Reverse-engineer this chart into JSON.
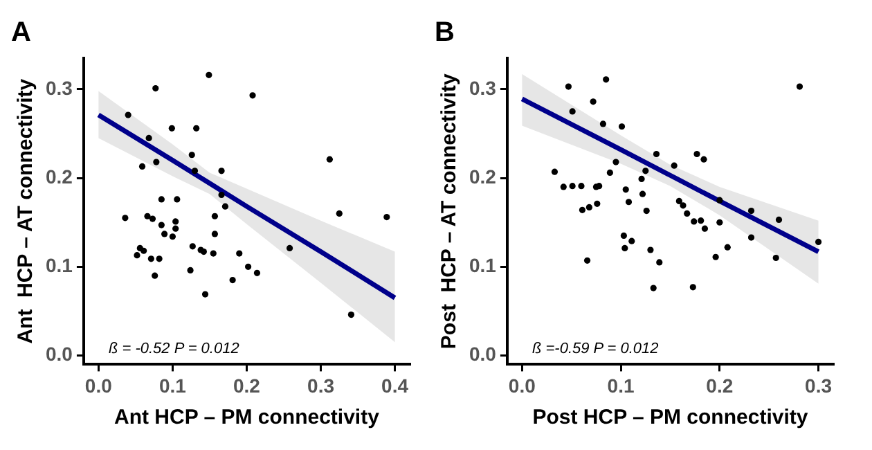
{
  "chart_data": [
    {
      "type": "scatter",
      "title": "A",
      "xlabel": "Ant HCP – PM connectivity",
      "ylabel": "Ant  HCP – AT connectivity",
      "xlim": [
        -0.02,
        0.42
      ],
      "xticks": [
        {
          "value": 0,
          "label": "0.0"
        },
        0.1,
        0.2,
        0.3,
        0.4
      ],
      "ylim": [
        -0.01,
        0.335
      ],
      "yticks": [
        {
          "value": 0,
          "label": "0.0"
        },
        0.1,
        0.2,
        0.3
      ],
      "grid": false,
      "legend": false,
      "annotations": [
        "ß = -0.52 P = 0.012"
      ],
      "series": [
        {
          "type": "scatter",
          "color": "#000000",
          "marker": "circle",
          "x": [
            0.04,
            0.077,
            0.149,
            0.208,
            0.068,
            0.099,
            0.132,
            0.059,
            0.078,
            0.126,
            0.13,
            0.166,
            0.312,
            0.166,
            0.171,
            0.036,
            0.066,
            0.073,
            0.085,
            0.085,
            0.106,
            0.104,
            0.104,
            0.089,
            0.1,
            0.157,
            0.157,
            0.325,
            0.389,
            0.056,
            0.061,
            0.052,
            0.071,
            0.082,
            0.076,
            0.127,
            0.138,
            0.142,
            0.155,
            0.19,
            0.202,
            0.214,
            0.181,
            0.124,
            0.144,
            0.258,
            0.341
          ],
          "values": [
            0.271,
            0.301,
            0.316,
            0.293,
            0.245,
            0.256,
            0.256,
            0.213,
            0.218,
            0.226,
            0.208,
            0.208,
            0.221,
            0.181,
            0.168,
            0.155,
            0.157,
            0.154,
            0.147,
            0.176,
            0.176,
            0.151,
            0.143,
            0.137,
            0.134,
            0.157,
            0.137,
            0.16,
            0.156,
            0.121,
            0.118,
            0.113,
            0.109,
            0.109,
            0.09,
            0.123,
            0.119,
            0.117,
            0.115,
            0.115,
            0.1,
            0.093,
            0.085,
            0.096,
            0.069,
            0.121,
            0.046
          ]
        },
        {
          "type": "line",
          "color": "#00008b",
          "marker": "none",
          "line_style": "solid",
          "x": [
            0,
            0.1,
            0.15,
            0.2,
            0.3,
            0.4
          ],
          "values": [
            0.271,
            0.22,
            0.194,
            0.168,
            0.117,
            0.065
          ],
          "lower": [
            0.245,
            0.202,
            0.182,
            0.148,
            0.082,
            0.015
          ],
          "upper": [
            0.298,
            0.238,
            0.206,
            0.188,
            0.152,
            0.117
          ]
        }
      ]
    },
    {
      "type": "scatter",
      "title": "B",
      "xlabel": "Post HCP – PM connectivity",
      "ylabel": "Post  HCP – AT connectivity",
      "xlim": [
        -0.015,
        0.315
      ],
      "xticks": [
        {
          "value": 0,
          "label": "0.0"
        },
        0.1,
        0.2,
        0.3
      ],
      "ylim": [
        -0.01,
        0.335
      ],
      "yticks": [
        {
          "value": 0,
          "label": "0.0"
        },
        0.1,
        0.2,
        0.3
      ],
      "grid": false,
      "legend": false,
      "annotations": [
        "ß =-0.59 P = 0.012"
      ],
      "series": [
        {
          "type": "scatter",
          "color": "#000000",
          "marker": "circle",
          "x": [
            0.047,
            0.051,
            0.072,
            0.085,
            0.082,
            0.101,
            0.281,
            0.033,
            0.042,
            0.051,
            0.06,
            0.075,
            0.078,
            0.089,
            0.095,
            0.105,
            0.121,
            0.122,
            0.125,
            0.136,
            0.154,
            0.177,
            0.184,
            0.061,
            0.068,
            0.076,
            0.108,
            0.126,
            0.159,
            0.163,
            0.167,
            0.174,
            0.181,
            0.185,
            0.2,
            0.2,
            0.232,
            0.232,
            0.26,
            0.3,
            0.103,
            0.111,
            0.104,
            0.13,
            0.139,
            0.066,
            0.133,
            0.173,
            0.196,
            0.208,
            0.257
          ],
          "values": [
            0.303,
            0.275,
            0.286,
            0.311,
            0.261,
            0.258,
            0.303,
            0.207,
            0.19,
            0.191,
            0.191,
            0.19,
            0.191,
            0.206,
            0.218,
            0.187,
            0.199,
            0.182,
            0.208,
            0.227,
            0.214,
            0.227,
            0.221,
            0.164,
            0.167,
            0.171,
            0.173,
            0.163,
            0.174,
            0.169,
            0.16,
            0.151,
            0.152,
            0.143,
            0.175,
            0.15,
            0.163,
            0.133,
            0.153,
            0.128,
            0.135,
            0.129,
            0.121,
            0.119,
            0.105,
            0.107,
            0.076,
            0.077,
            0.111,
            0.122,
            0.11
          ]
        },
        {
          "type": "line",
          "color": "#00008b",
          "marker": "none",
          "line_style": "solid",
          "x": [
            0,
            0.1,
            0.15,
            0.2,
            0.3
          ],
          "values": [
            0.289,
            0.232,
            0.203,
            0.174,
            0.117
          ],
          "lower": [
            0.259,
            0.216,
            0.191,
            0.158,
            0.081
          ],
          "upper": [
            0.317,
            0.248,
            0.215,
            0.19,
            0.152
          ]
        }
      ]
    }
  ]
}
